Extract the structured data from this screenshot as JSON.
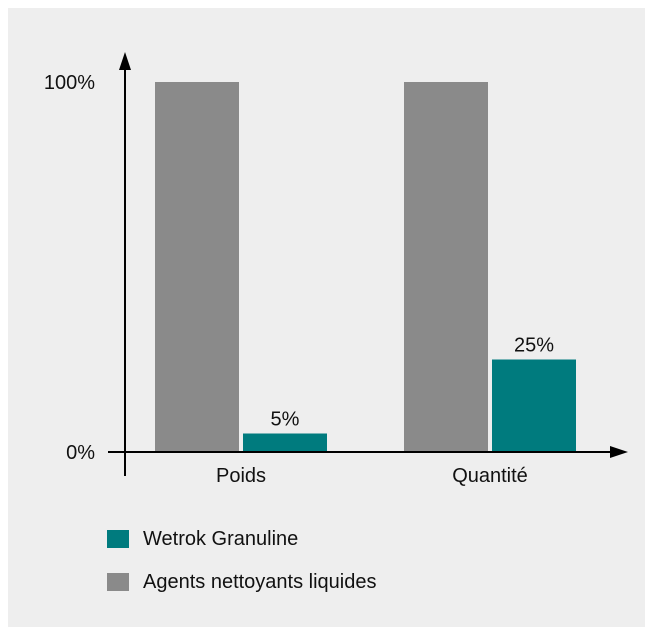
{
  "chart_data": {
    "type": "bar",
    "categories": [
      "Poids",
      "Quantité"
    ],
    "series": [
      {
        "name": "Agents nettoyants liquides",
        "values": [
          100,
          100
        ],
        "color": "#8a8a8a",
        "labels": [
          "",
          ""
        ]
      },
      {
        "name": "Wetrok Granuline",
        "values": [
          5,
          25
        ],
        "color": "#007b7e",
        "labels": [
          "5%",
          "25%"
        ]
      }
    ],
    "yticks": [
      {
        "value": 0,
        "label": "0%"
      },
      {
        "value": 100,
        "label": "100%"
      }
    ],
    "ylim": [
      0,
      100
    ],
    "legend_position": "bottom-left",
    "legend_order": [
      1,
      0
    ],
    "grid": false
  }
}
